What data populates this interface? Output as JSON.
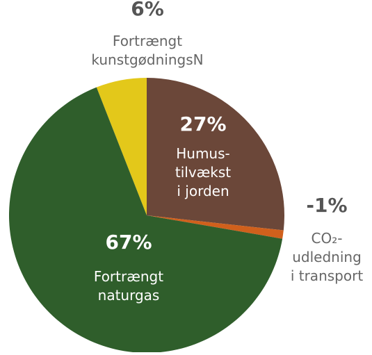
{
  "chart_data": {
    "type": "pie",
    "categories": [
      [
        "Fortrængt",
        "kunstgødningsN"
      ],
      [
        "Humus-",
        "tilvækst",
        "i jorden"
      ],
      [
        "CO₂-",
        "udledning",
        "i transport"
      ],
      [
        "Fortrængt",
        "naturgas"
      ]
    ],
    "values": [
      6,
      27,
      -1,
      67
    ],
    "value_labels": [
      "6%",
      "27%",
      "-1%",
      "67%"
    ],
    "colors": [
      "#e3c81a",
      "#6b4739",
      "#d0601c",
      "#2f5e2b"
    ]
  }
}
